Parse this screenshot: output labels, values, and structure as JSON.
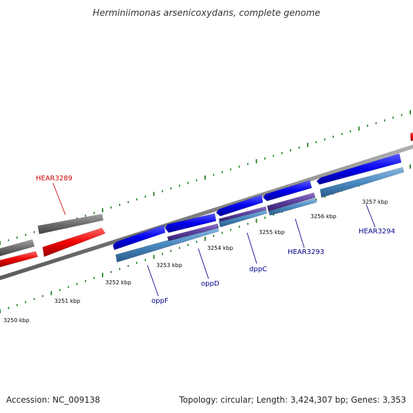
{
  "title": "Herminiimonas arsenicoxydans, complete genome",
  "footer": {
    "accession": "Accession: NC_009138",
    "summary": "Topology: circular; Length: 3,424,307 bp; Genes: 3,353"
  },
  "colors": {
    "gc_ticks": "#1a7a1a",
    "backbone": "#8c8c8c",
    "cds_forward": "#0000ee",
    "cds_reverse": "#ee0000",
    "gray_feature": "#6e6e6e",
    "blue_highlight": "#4a8ac0",
    "purple_highlight": "#5a3d9e",
    "label_blue": "#00008b",
    "label_red": "#cc0000"
  },
  "tick_labels": [
    "3250 kbp",
    "3251 kbp",
    "3252 kbp",
    "3253 kbp",
    "3254 kbp",
    "3255 kbp",
    "3256 kbp",
    "3257 kbp"
  ],
  "gene_labels": [
    {
      "text": "HEAR3289",
      "color": "#cc0000"
    },
    {
      "text": "oppF",
      "color": "#00008b"
    },
    {
      "text": "oppD",
      "color": "#00008b"
    },
    {
      "text": "dppC",
      "color": "#00008b"
    },
    {
      "text": "HEAR3293",
      "color": "#00008b"
    },
    {
      "text": "HEAR3294",
      "color": "#00008b"
    }
  ]
}
